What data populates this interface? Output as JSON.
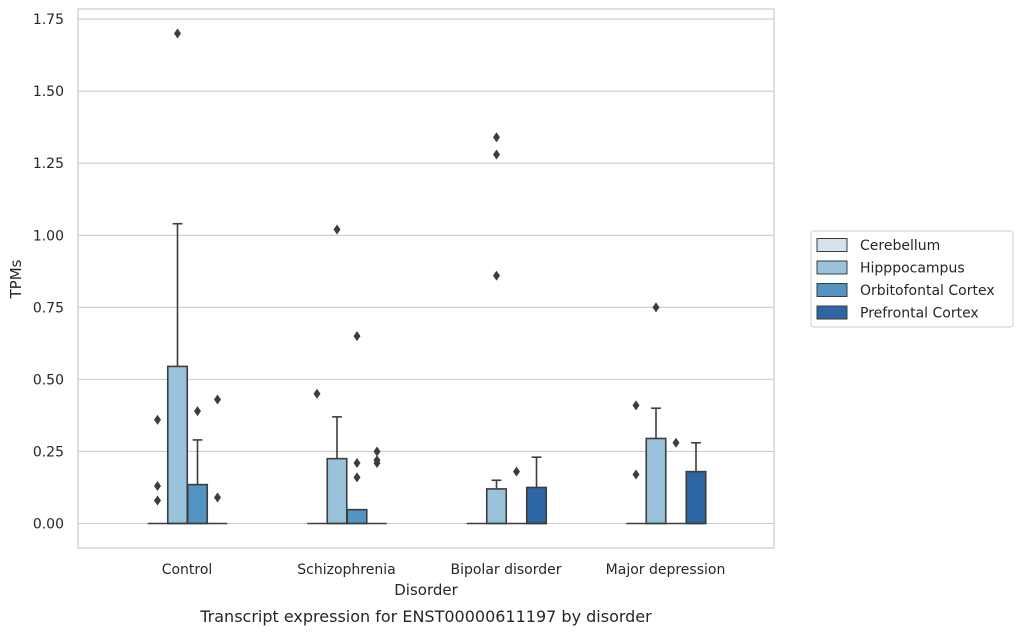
{
  "chart_data": {
    "type": "box",
    "title": "",
    "caption": "Transcript expression for ENST00000611197 by disorder",
    "xlabel": "Disorder",
    "ylabel": "TPMs",
    "ylim": [
      -0.085,
      1.785
    ],
    "yticks": [
      0.0,
      0.25,
      0.5,
      0.75,
      1.0,
      1.25,
      1.5,
      1.75
    ],
    "ytick_labels": [
      "0.00",
      "0.25",
      "0.50",
      "0.75",
      "1.00",
      "1.25",
      "1.50",
      "1.75"
    ],
    "categories": [
      "Control",
      "Schizophrenia",
      "Bipolar disorder",
      "Major depression"
    ],
    "grid": "horizontal",
    "legend_position": "right",
    "series": [
      {
        "name": "Cerebellum",
        "color": "#d3e3f0",
        "boxes": [
          {
            "q1": 0,
            "median": 0,
            "q3": 0,
            "whisker_low": 0,
            "whisker_high": 0,
            "outliers": [
              0.36,
              0.13,
              0.08
            ]
          },
          {
            "q1": 0,
            "median": 0,
            "q3": 0,
            "whisker_low": 0,
            "whisker_high": 0,
            "outliers": [
              0.45
            ]
          },
          {
            "q1": 0,
            "median": 0,
            "q3": 0,
            "whisker_low": 0,
            "whisker_high": 0,
            "outliers": []
          },
          {
            "q1": 0,
            "median": 0,
            "q3": 0,
            "whisker_low": 0,
            "whisker_high": 0,
            "outliers": [
              0.41,
              0.17
            ]
          }
        ]
      },
      {
        "name": "Hipppocampus",
        "color": "#9ac2da",
        "boxes": [
          {
            "q1": 0,
            "median": 0,
            "q3": 0.545,
            "whisker_low": 0,
            "whisker_high": 1.04,
            "outliers": [
              1.7
            ]
          },
          {
            "q1": 0,
            "median": 0,
            "q3": 0.225,
            "whisker_low": 0,
            "whisker_high": 0.37,
            "outliers": [
              1.02
            ]
          },
          {
            "q1": 0,
            "median": 0,
            "q3": 0.12,
            "whisker_low": 0,
            "whisker_high": 0.15,
            "outliers": [
              1.34,
              1.28,
              0.86
            ]
          },
          {
            "q1": 0,
            "median": 0,
            "q3": 0.295,
            "whisker_low": 0,
            "whisker_high": 0.4,
            "outliers": [
              0.75
            ]
          }
        ]
      },
      {
        "name": "Orbitofontal Cortex",
        "color": "#5294c4",
        "boxes": [
          {
            "q1": 0,
            "median": 0,
            "q3": 0.135,
            "whisker_low": 0,
            "whisker_high": 0.29,
            "outliers": [
              0.39
            ]
          },
          {
            "q1": 0,
            "median": 0,
            "q3": 0.048,
            "whisker_low": 0,
            "whisker_high": 0.048,
            "outliers": [
              0.65,
              0.21,
              0.16
            ]
          },
          {
            "q1": 0,
            "median": 0,
            "q3": 0,
            "whisker_low": 0,
            "whisker_high": 0,
            "outliers": [
              0.18
            ]
          },
          {
            "q1": 0,
            "median": 0,
            "q3": 0,
            "whisker_low": 0,
            "whisker_high": 0,
            "outliers": [
              0.28
            ]
          }
        ]
      },
      {
        "name": "Prefrontal Cortex",
        "color": "#2c67a4",
        "boxes": [
          {
            "q1": 0,
            "median": 0,
            "q3": 0,
            "whisker_low": 0,
            "whisker_high": 0,
            "outliers": [
              0.43,
              0.09
            ]
          },
          {
            "q1": 0,
            "median": 0,
            "q3": 0,
            "whisker_low": 0,
            "whisker_high": 0,
            "outliers": [
              0.25,
              0.22,
              0.21
            ]
          },
          {
            "q1": 0,
            "median": 0,
            "q3": 0.125,
            "whisker_low": 0,
            "whisker_high": 0.23,
            "outliers": []
          },
          {
            "q1": 0,
            "median": 0,
            "q3": 0.18,
            "whisker_low": 0,
            "whisker_high": 0.28,
            "outliers": []
          }
        ]
      }
    ]
  }
}
